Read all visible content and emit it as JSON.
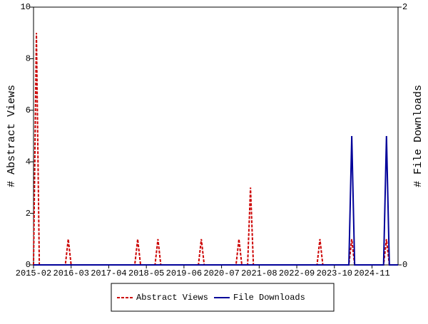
{
  "chart_data": {
    "type": "line",
    "categories": [
      "2015-02",
      null,
      null,
      null,
      null,
      null,
      null,
      null,
      null,
      null,
      null,
      null,
      null,
      "2016-03",
      null,
      null,
      null,
      null,
      null,
      null,
      null,
      null,
      null,
      null,
      null,
      null,
      "2017-04",
      null,
      null,
      null,
      null,
      null,
      null,
      null,
      null,
      null,
      null,
      null,
      null,
      "2018-05",
      null,
      null,
      null,
      null,
      null,
      null,
      null,
      null,
      null,
      null,
      null,
      null,
      "2019-06",
      null,
      null,
      null,
      null,
      null,
      null,
      null,
      null,
      null,
      null,
      null,
      null,
      "2020-07",
      null,
      null,
      null,
      null,
      null,
      null,
      null,
      null,
      null,
      null,
      null,
      null,
      "2021-08",
      null,
      null,
      null,
      null,
      null,
      null,
      null,
      null,
      null,
      null,
      null,
      null,
      "2022-09",
      null,
      null,
      null,
      null,
      null,
      null,
      null,
      null,
      null,
      null,
      null,
      null,
      "2023-10",
      null,
      null,
      null,
      null,
      null,
      null,
      null,
      null,
      null,
      null,
      null,
      null,
      "2024-11",
      null,
      null,
      null,
      null,
      null,
      null,
      null,
      null,
      null
    ],
    "series": [
      {
        "name": "Abstract Views",
        "color": "#cc0000",
        "dash": true,
        "values": [
          0,
          9,
          0,
          0,
          0,
          0,
          0,
          0,
          0,
          0,
          0,
          0,
          1,
          0,
          0,
          0,
          0,
          0,
          0,
          0,
          0,
          0,
          0,
          0,
          0,
          0,
          0,
          0,
          0,
          0,
          0,
          0,
          0,
          0,
          0,
          0,
          1,
          0,
          0,
          0,
          0,
          0,
          0,
          1,
          0,
          0,
          0,
          0,
          0,
          0,
          0,
          0,
          0,
          0,
          0,
          0,
          0,
          0,
          1,
          0,
          0,
          0,
          0,
          0,
          0,
          0,
          0,
          0,
          0,
          0,
          0,
          1,
          0,
          0,
          0,
          3,
          0,
          0,
          0,
          0,
          0,
          0,
          0,
          0,
          0,
          0,
          0,
          0,
          0,
          0,
          0,
          0,
          0,
          0,
          0,
          0,
          0,
          0,
          0,
          1,
          0,
          0,
          0,
          0,
          0,
          0,
          0,
          0,
          0,
          0,
          1,
          0,
          0,
          0,
          0,
          0,
          0,
          0,
          0,
          0,
          0,
          0,
          1,
          0,
          0,
          0,
          0
        ]
      },
      {
        "name": "File Downloads",
        "color": "#000099",
        "dash": false,
        "axis": "y2",
        "values": [
          0,
          0,
          0,
          0,
          0,
          0,
          0,
          0,
          0,
          0,
          0,
          0,
          0,
          0,
          0,
          0,
          0,
          0,
          0,
          0,
          0,
          0,
          0,
          0,
          0,
          0,
          0,
          0,
          0,
          0,
          0,
          0,
          0,
          0,
          0,
          0,
          0,
          0,
          0,
          0,
          0,
          0,
          0,
          0,
          0,
          0,
          0,
          0,
          0,
          0,
          0,
          0,
          0,
          0,
          0,
          0,
          0,
          0,
          0,
          0,
          0,
          0,
          0,
          0,
          0,
          0,
          0,
          0,
          0,
          0,
          0,
          0,
          0,
          0,
          0,
          0,
          0,
          0,
          0,
          0,
          0,
          0,
          0,
          0,
          0,
          0,
          0,
          0,
          0,
          0,
          0,
          0,
          0,
          0,
          0,
          0,
          0,
          0,
          0,
          0,
          0,
          0,
          0,
          0,
          0,
          0,
          0,
          0,
          0,
          0,
          1,
          0,
          0,
          0,
          0,
          0,
          0,
          0,
          0,
          0,
          0,
          0,
          1,
          0,
          0,
          0,
          0
        ]
      }
    ],
    "y_label": "# Abstract Views",
    "y2_label": "# File Downloads",
    "ylim": [
      0,
      10
    ],
    "yticks": [
      0,
      2,
      4,
      6,
      8,
      10
    ],
    "y2lim": [
      0,
      2
    ],
    "y2ticks": [
      0,
      2
    ]
  }
}
